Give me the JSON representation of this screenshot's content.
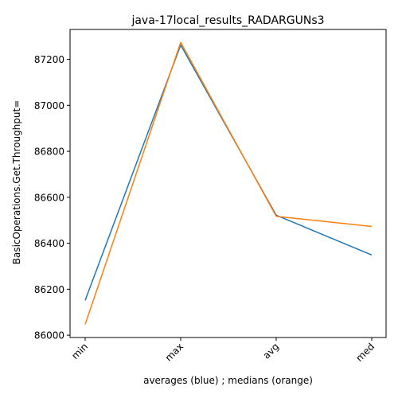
{
  "chart_data": {
    "type": "line",
    "title": "java-17local_results_RADARGUNs3",
    "xlabel": "averages (blue) ; medians (orange)",
    "ylabel": "BasicOperations.Get.Throughput=",
    "categories": [
      "min",
      "max",
      "avg",
      "med"
    ],
    "series": [
      {
        "values": [
          86152,
          87262,
          86522,
          86349
        ],
        "color": "#1f77b4"
      },
      {
        "values": [
          86047,
          87274,
          86517,
          86473
        ],
        "color": "#ff7f0e"
      }
    ],
    "ylim": [
      85990,
      87330
    ],
    "yticks": [
      86000,
      86200,
      86400,
      86600,
      86800,
      87000,
      87200
    ],
    "grid": false,
    "legend": "none"
  }
}
